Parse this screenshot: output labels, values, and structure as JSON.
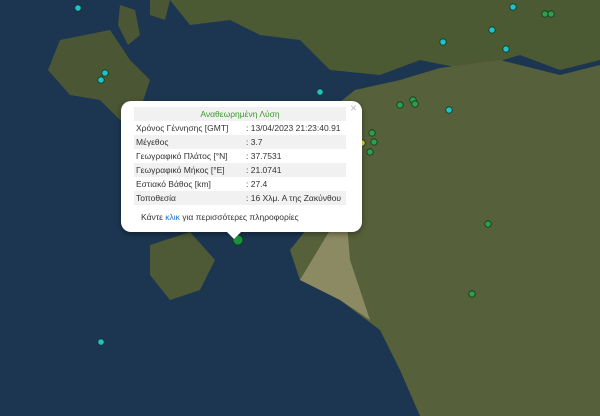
{
  "popup": {
    "title": "Αναθεωρημένη Λύση",
    "rows": [
      {
        "label": "Χρόνος Γέννησης [GMT]",
        "value": ": 13/04/2023 21:23:40.91"
      },
      {
        "label": "Μέγεθος",
        "value": ": 3.7"
      },
      {
        "label": "Γεωγραφικό Πλάτος [°N]",
        "value": ": 37.7531"
      },
      {
        "label": "Γεωγραφικό Μήκος [°E]",
        "value": ": 21.0741"
      },
      {
        "label": "Εστιακό Βάθος [km]",
        "value": ": 27.4"
      },
      {
        "label": "Τοποθεσία",
        "value": ": 16 Χλμ. Α της Ζακύνθου"
      }
    ],
    "footer_pre": "Κάντε ",
    "footer_link": "κλικ",
    "footer_post": " για περισσότερες πληροφορίες",
    "close": "×"
  },
  "colors": {
    "recent": "#22c0c8",
    "older": "#2e9e4a",
    "selected": "#1e8f3c",
    "highlight": "#e8d23a"
  }
}
